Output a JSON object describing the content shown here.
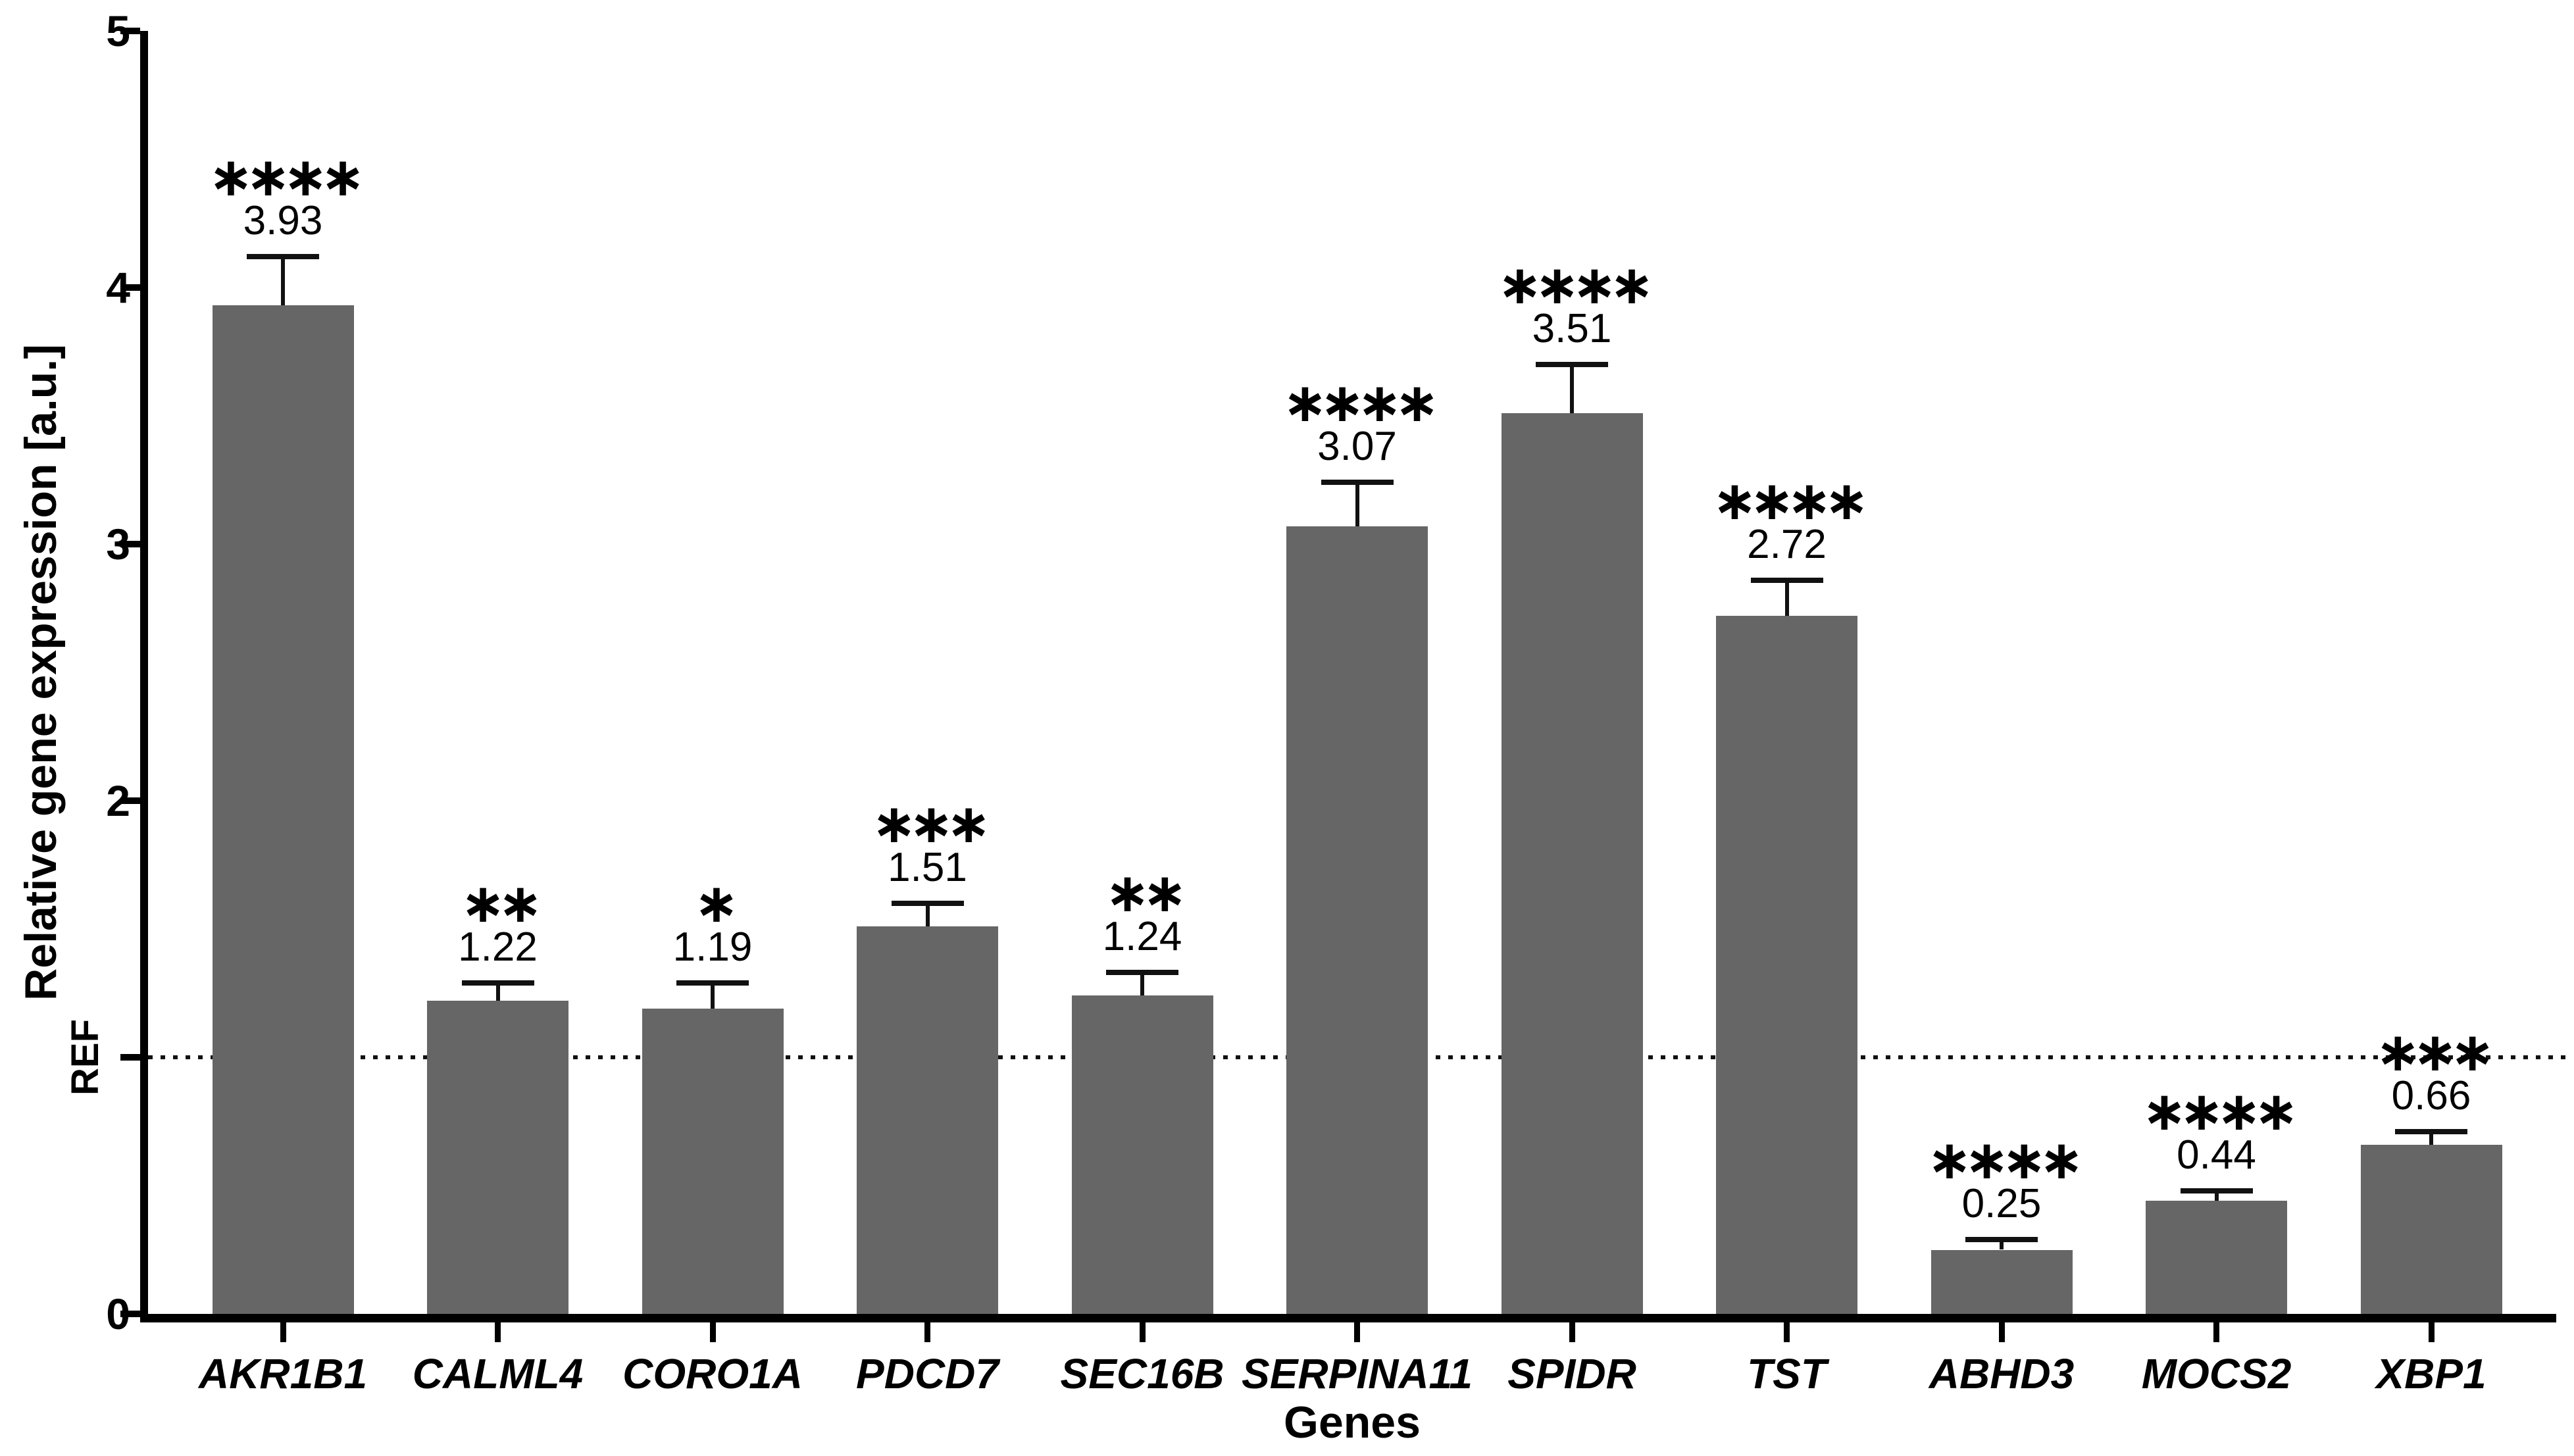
{
  "figure": {
    "background": "#ffffff"
  },
  "chart_data": {
    "type": "bar",
    "title": "",
    "xlabel": "Genes",
    "ylabel": "Relative gene expression [a.u.]",
    "ylim": [
      0,
      5
    ],
    "grid": false,
    "legend_position": "none",
    "y_ticks": [
      {
        "value": 5,
        "label": "5"
      },
      {
        "value": 4,
        "label": "4"
      },
      {
        "value": 3,
        "label": "3"
      },
      {
        "value": 2,
        "label": "2"
      },
      {
        "value": 1,
        "label": "REF",
        "rotated": true
      },
      {
        "value": 0,
        "label": "0"
      }
    ],
    "reference_line": {
      "value": 1,
      "style": "dotted",
      "label": "REF"
    },
    "categories": [
      "AKR1B1",
      "CALML4",
      "CORO1A",
      "PDCD7",
      "SEC16B",
      "SERPINA11",
      "SPIDR",
      "TST",
      "ABHD3",
      "MOCS2",
      "XBP1"
    ],
    "values": [
      3.93,
      1.22,
      1.19,
      1.51,
      1.24,
      3.07,
      3.51,
      2.72,
      0.25,
      0.44,
      0.66
    ],
    "value_labels": [
      "3.93",
      "1.22",
      "1.19",
      "1.51",
      "1.24",
      "3.07",
      "3.51",
      "2.72",
      "0.25",
      "0.44",
      "0.66"
    ],
    "errors_upper": [
      0.18,
      0.06,
      0.09,
      0.08,
      0.08,
      0.16,
      0.18,
      0.13,
      0.03,
      0.03,
      0.04
    ],
    "significance": [
      "****",
      "**",
      "*",
      "***",
      "**",
      "****",
      "****",
      "****",
      "****",
      "****",
      "***"
    ],
    "bar_color": "#666666",
    "axis_color": "#000000"
  }
}
